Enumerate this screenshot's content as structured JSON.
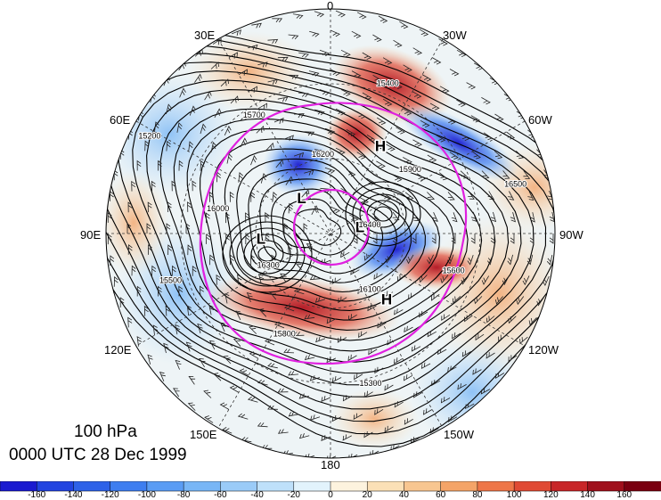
{
  "longitude_labels": {
    "n0": "0",
    "w30": "30W",
    "w60": "60W",
    "w90": "90W",
    "w120": "120W",
    "w150": "150W",
    "s180": "180",
    "e150": "150E",
    "e120": "120E",
    "e90": "90E",
    "e60": "60E",
    "e30": "30E"
  },
  "title": {
    "level": "100 hPa",
    "time": "0000 UTC 28 Dec 1999"
  },
  "pressure_centers": [
    {
      "label": "H",
      "lon": "30W",
      "lat": 50
    },
    {
      "label": "L",
      "lon": "40E",
      "lat": 72
    },
    {
      "label": "L",
      "lon": "80W",
      "lat": 78
    },
    {
      "label": "L",
      "lon": "95E",
      "lat": 62
    },
    {
      "label": "H",
      "lon": "140W",
      "lat": 55
    }
  ],
  "contour_labels": [
    "16400",
    "16300",
    "16200",
    "16100",
    "16000",
    "15900",
    "15800",
    "15700",
    "15600",
    "15500",
    "15400",
    "15300",
    "15200",
    "16500"
  ],
  "colorbar": {
    "ticks": [
      "-160",
      "-140",
      "-120",
      "-100",
      "-80",
      "-60",
      "-40",
      "-20",
      "0",
      "20",
      "40",
      "60",
      "80",
      "100",
      "120",
      "140",
      "160"
    ],
    "colors": [
      "#1a1ad0",
      "#2244e0",
      "#2e62e8",
      "#3e7ef0",
      "#5a9cf4",
      "#78b6f6",
      "#9acbf8",
      "#bee0fa",
      "#e2f3fc",
      "#fdf3de",
      "#fbe0b6",
      "#f8c690",
      "#f4a468",
      "#ee7648",
      "#e04a34",
      "#c82628",
      "#a0101c",
      "#7a0010"
    ]
  },
  "colors": {
    "contour": "#000000",
    "highlight_contour": "#e020e0",
    "graticule": "#333333"
  }
}
